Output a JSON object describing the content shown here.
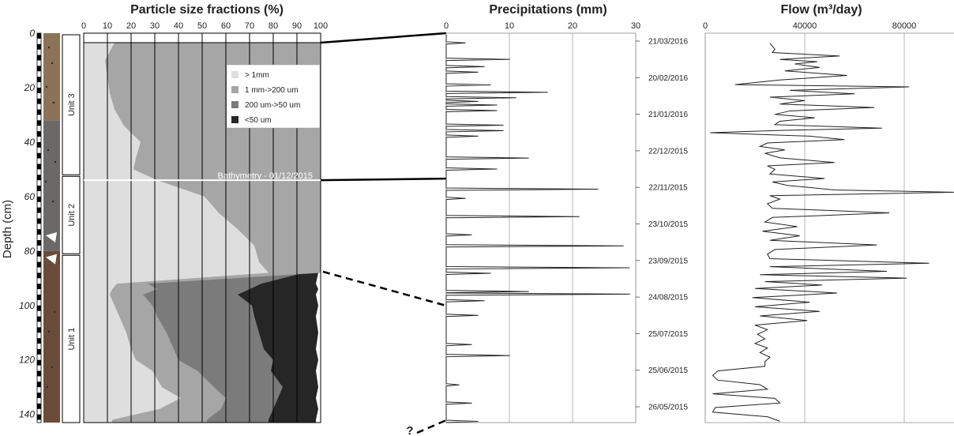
{
  "chart_data": [
    {
      "type": "area",
      "title": "Particle size fractions (%)",
      "ylabel": "Depth (cm)",
      "xlim": [
        0,
        100
      ],
      "ylim": [
        0,
        143
      ],
      "x_ticks": [
        "0",
        "10",
        "20",
        "30",
        "40",
        "50",
        "60",
        "70",
        "80",
        "90",
        "100"
      ],
      "y_ticks": [
        "0",
        "20",
        "40",
        "60",
        "80",
        "100",
        "120",
        "140"
      ],
      "legend": {
        "placement": "top-right",
        "entries": [
          "> 1mm",
          "1 mm->200 um",
          "200 um->50 um",
          "<50 um"
        ]
      },
      "colors": [
        "#dedede",
        "#a6a6a6",
        "#7b7b7b",
        "#262626"
      ],
      "depth": [
        6,
        10,
        16,
        22,
        28,
        34,
        40,
        46,
        50,
        54,
        60,
        66,
        72,
        78,
        84,
        88,
        92,
        94,
        96,
        100,
        104,
        110,
        116,
        120,
        124,
        130,
        134,
        138,
        142
      ],
      "series": [
        {
          "name": "> 1mm",
          "cumulative": [
            13,
            9,
            10,
            11,
            13,
            17,
            24,
            22,
            21,
            31,
            51,
            57,
            65,
            72,
            74,
            78,
            14,
            12,
            11,
            13,
            15,
            18,
            20,
            22,
            29,
            33,
            41,
            32,
            12
          ]
        },
        {
          "name": "1 mm->200 um",
          "cumulative": [
            100,
            100,
            100,
            100,
            100,
            100,
            100,
            100,
            100,
            100,
            100,
            100,
            100,
            100,
            100,
            100,
            27,
            31,
            25,
            29,
            31,
            35,
            38,
            40,
            48,
            55,
            60,
            58,
            52
          ]
        },
        {
          "name": "200 um->50 um",
          "cumulative": [
            100,
            100,
            100,
            100,
            100,
            100,
            100,
            100,
            100,
            100,
            100,
            100,
            100,
            100,
            92,
            93,
            75,
            70,
            65,
            71,
            72,
            74,
            76,
            80,
            79,
            84,
            82,
            80,
            78
          ]
        },
        {
          "name": "<50 um",
          "cumulative": [
            100,
            100,
            100,
            100,
            100,
            100,
            100,
            100,
            100,
            100,
            100,
            100,
            100,
            100,
            99,
            99,
            98,
            99,
            98,
            99,
            98,
            99,
            98,
            99,
            98,
            99,
            98,
            99,
            98
          ]
        }
      ],
      "units": [
        {
          "label": "Unit 3",
          "top": 0,
          "bottom": 52
        },
        {
          "label": "Unit 2",
          "top": 52,
          "bottom": 81
        },
        {
          "label": "Unit 1",
          "top": 81,
          "bottom": 143
        }
      ],
      "core_colors": [
        {
          "top": 0,
          "bottom": 32,
          "color": "#8c7259"
        },
        {
          "top": 32,
          "bottom": 80,
          "color": "#6b6966"
        },
        {
          "top": 80,
          "bottom": 143,
          "color": "#6a4b3a"
        }
      ],
      "markers_depth": [
        76,
        84
      ],
      "annotation": {
        "text": "Bathymetry - 01/12/2015",
        "depth": 54
      }
    },
    {
      "type": "line",
      "title": "Precipitations (mm)",
      "xlim": [
        0,
        30
      ],
      "x_ticks": [
        "0",
        "10",
        "20",
        "30"
      ],
      "date_labels": [
        "21/03/2016",
        "20/02/2016",
        "21/01/2016",
        "22/12/2015",
        "22/11/2015",
        "23/10/2015",
        "23/09/2015",
        "24/08/2015",
        "25/07/2015",
        "25/06/2015",
        "26/05/2015"
      ],
      "spikes": [
        {
          "date_index": 0.05,
          "value": 3
        },
        {
          "date_index": 0.5,
          "value": 10
        },
        {
          "date_index": 0.7,
          "value": 6
        },
        {
          "date_index": 0.85,
          "value": 5
        },
        {
          "date_index": 1.2,
          "value": 7
        },
        {
          "date_index": 1.4,
          "value": 16
        },
        {
          "date_index": 1.55,
          "value": 11
        },
        {
          "date_index": 1.65,
          "value": 5
        },
        {
          "date_index": 1.75,
          "value": 8
        },
        {
          "date_index": 1.9,
          "value": 8
        },
        {
          "date_index": 2.3,
          "value": 9
        },
        {
          "date_index": 2.45,
          "value": 9
        },
        {
          "date_index": 2.6,
          "value": 5
        },
        {
          "date_index": 3.2,
          "value": 13
        },
        {
          "date_index": 3.5,
          "value": 8
        },
        {
          "date_index": 4.05,
          "value": 24
        },
        {
          "date_index": 4.3,
          "value": 3
        },
        {
          "date_index": 4.8,
          "value": 21
        },
        {
          "date_index": 5.3,
          "value": 4
        },
        {
          "date_index": 5.6,
          "value": 28
        },
        {
          "date_index": 6.2,
          "value": 29
        },
        {
          "date_index": 6.35,
          "value": 7
        },
        {
          "date_index": 6.85,
          "value": 13
        },
        {
          "date_index": 6.92,
          "value": 29
        },
        {
          "date_index": 7.1,
          "value": 6
        },
        {
          "date_index": 7.5,
          "value": 5
        },
        {
          "date_index": 8.3,
          "value": 4
        },
        {
          "date_index": 8.6,
          "value": 10
        },
        {
          "date_index": 9.4,
          "value": 2
        },
        {
          "date_index": 9.9,
          "value": 4
        },
        {
          "date_index": 10.4,
          "value": 5
        }
      ],
      "question_mark": "?"
    },
    {
      "type": "line",
      "title": "Flow (m³/day)",
      "xlim": [
        0,
        100000
      ],
      "x_ticks": [
        "0",
        "40000",
        "80000"
      ],
      "x_tick_values": [
        0,
        40000,
        80000
      ],
      "series": [
        {
          "points": [
            [
              0.1,
              26000
            ],
            [
              0.35,
              28000
            ],
            [
              0.5,
              27000
            ],
            [
              0.65,
              54000
            ],
            [
              0.8,
              30000
            ],
            [
              0.9,
              45000
            ],
            [
              1.0,
              36000
            ],
            [
              1.15,
              46000
            ],
            [
              1.3,
              32000
            ],
            [
              1.5,
              57000
            ],
            [
              1.7,
              30000
            ],
            [
              1.9,
              12000
            ],
            [
              2.0,
              82000
            ],
            [
              2.15,
              34000
            ],
            [
              2.3,
              60000
            ],
            [
              2.45,
              26000
            ],
            [
              2.6,
              40000
            ],
            [
              2.75,
              30000
            ],
            [
              2.9,
              68000
            ],
            [
              3.05,
              34000
            ],
            [
              3.2,
              28000
            ],
            [
              3.35,
              44000
            ],
            [
              3.5,
              30000
            ],
            [
              3.65,
              28000
            ],
            [
              3.8,
              71000
            ],
            [
              3.9,
              30000
            ],
            [
              4.0,
              2000
            ],
            [
              4.15,
              42000
            ],
            [
              4.3,
              56000
            ],
            [
              4.45,
              25000
            ],
            [
              4.6,
              22000
            ],
            [
              4.75,
              32000
            ],
            [
              4.9,
              24000
            ],
            [
              5.1,
              30000
            ],
            [
              5.3,
              52000
            ],
            [
              5.45,
              25000
            ],
            [
              5.6,
              28000
            ],
            [
              5.8,
              26000
            ],
            [
              6.0,
              48000
            ],
            [
              6.15,
              27000
            ],
            [
              6.3,
              33000
            ],
            [
              6.5,
              52000
            ],
            [
              6.6,
              105000
            ],
            [
              6.75,
              26000
            ],
            [
              6.9,
              30000
            ],
            [
              7.1,
              25000
            ],
            [
              7.3,
              27000
            ],
            [
              7.5,
              74000
            ],
            [
              7.7,
              27000
            ],
            [
              7.9,
              24000
            ],
            [
              8.1,
              37000
            ],
            [
              8.3,
              23000
            ],
            [
              8.5,
              38000
            ],
            [
              8.7,
              26000
            ],
            [
              8.9,
              69000
            ],
            [
              9.1,
              28000
            ],
            [
              9.3,
              25000
            ],
            [
              9.5,
              26000
            ],
            [
              9.7,
              90000
            ],
            [
              9.85,
              26000
            ],
            [
              10.05,
              73000
            ],
            [
              10.2,
              22000
            ],
            [
              10.35,
              81000
            ],
            [
              10.5,
              24000
            ],
            [
              10.65,
              47000
            ],
            [
              10.8,
              20000
            ],
            [
              11.0,
              53000
            ],
            [
              11.2,
              19000
            ],
            [
              11.4,
              42000
            ],
            [
              11.6,
              20000
            ],
            [
              11.8,
              46000
            ],
            [
              12.0,
              22000
            ],
            [
              12.2,
              41000
            ],
            [
              12.4,
              20000
            ],
            [
              12.6,
              25000
            ],
            [
              12.8,
              21000
            ],
            [
              13.0,
              24000
            ],
            [
              13.2,
              20000
            ],
            [
              13.4,
              25000
            ],
            [
              13.6,
              22000
            ],
            [
              13.8,
              26000
            ],
            [
              14.0,
              24000
            ],
            [
              14.2,
              24000
            ],
            [
              14.4,
              5000
            ],
            [
              14.6,
              3000
            ],
            [
              14.8,
              5000
            ],
            [
              15.0,
              22000
            ],
            [
              15.2,
              25000
            ],
            [
              15.4,
              3000
            ],
            [
              15.6,
              28000
            ],
            [
              15.8,
              30000
            ],
            [
              16.0,
              4000
            ],
            [
              16.2,
              3000
            ],
            [
              16.4,
              25000
            ],
            [
              16.6,
              30000
            ]
          ]
        }
      ]
    }
  ]
}
